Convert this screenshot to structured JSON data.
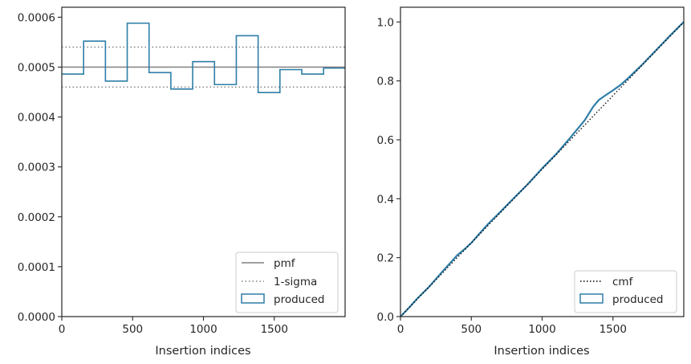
{
  "chart_data": [
    {
      "type": "histogram",
      "xlabel": "Insertion indices",
      "ylabel": "",
      "xlim": [
        0,
        2000
      ],
      "ylim": [
        0,
        0.00062
      ],
      "xticks": [
        "0",
        "500",
        "1000",
        "1500"
      ],
      "yticks": [
        "0.0000",
        "0.0001",
        "0.0002",
        "0.0003",
        "0.0004",
        "0.0005",
        "0.0006"
      ],
      "pmf": 0.0005,
      "sigma_band": [
        0.00046,
        0.00054
      ],
      "bin_edges": [
        0,
        154,
        308,
        462,
        616,
        770,
        924,
        1078,
        1232,
        1386,
        1540,
        1694,
        1848,
        2000
      ],
      "bin_values": [
        0.000486,
        0.000552,
        0.000472,
        0.000588,
        0.000489,
        0.000456,
        0.000511,
        0.000465,
        0.000563,
        0.000449,
        0.000495,
        0.000486,
        0.000498
      ],
      "legend": [
        {
          "label": "pmf",
          "style": "line",
          "color": "#808080"
        },
        {
          "label": "1-sigma",
          "style": "dotted",
          "color": "#808080"
        },
        {
          "label": "produced",
          "style": "box",
          "color": "#1f77b4"
        }
      ],
      "legend_position": "lower-right",
      "colors": {
        "produced": "#2f7ea8",
        "reference": "#808080"
      }
    },
    {
      "type": "line",
      "xlabel": "Insertion indices",
      "ylabel": "",
      "xlim": [
        0,
        2000
      ],
      "ylim": [
        0,
        1.05
      ],
      "xticks": [
        "0",
        "500",
        "1000",
        "1500"
      ],
      "yticks": [
        "0.0",
        "0.2",
        "0.4",
        "0.6",
        "0.8",
        "1.0"
      ],
      "cmf": {
        "x": [
          0,
          2000
        ],
        "y": [
          0,
          1.0
        ]
      },
      "produced": {
        "x": [
          0,
          60,
          120,
          200,
          300,
          400,
          450,
          500,
          560,
          620,
          700,
          800,
          900,
          1000,
          1100,
          1200,
          1300,
          1360,
          1400,
          1450,
          1500,
          1550,
          1600,
          1700,
          1800,
          1900,
          2000
        ],
        "y": [
          0,
          0.03,
          0.062,
          0.1,
          0.155,
          0.208,
          0.228,
          0.25,
          0.283,
          0.315,
          0.353,
          0.402,
          0.45,
          0.503,
          0.552,
          0.608,
          0.666,
          0.712,
          0.735,
          0.752,
          0.768,
          0.785,
          0.806,
          0.852,
          0.902,
          0.952,
          1.0
        ]
      },
      "legend": [
        {
          "label": "cmf",
          "style": "dotted",
          "color": "#000000"
        },
        {
          "label": "produced",
          "style": "box",
          "color": "#1f77b4"
        }
      ],
      "legend_position": "lower-right",
      "colors": {
        "produced": "#2f7ea8",
        "reference": "#000000"
      }
    }
  ]
}
